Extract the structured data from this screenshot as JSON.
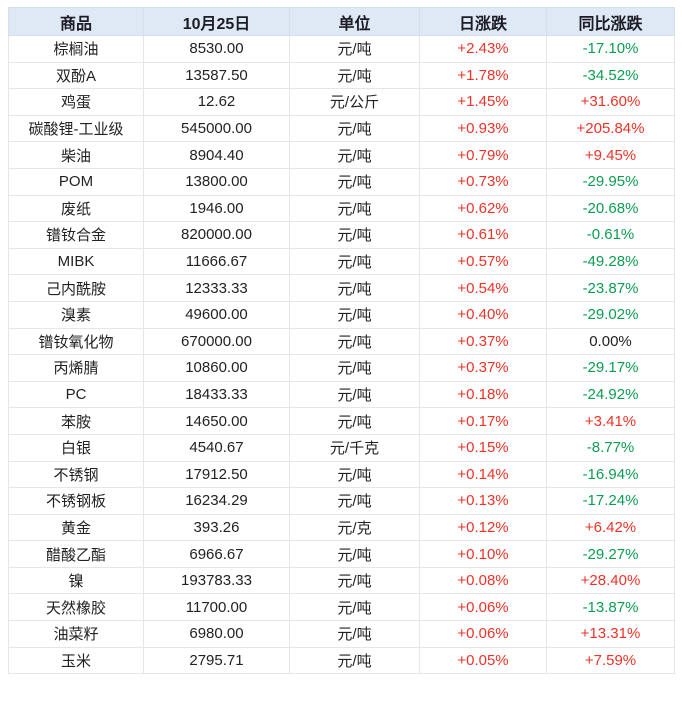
{
  "colors": {
    "up_red": "#ee3227",
    "down_green": "#0d9d52",
    "neutral": "#1f1f1f",
    "header_bg": "#dfe9f6",
    "outer_border": "#bdd0e6",
    "grid_line": "#e6e6e6"
  },
  "chart_data": {
    "type": "table",
    "columns": [
      "商品",
      "10月25日",
      "单位",
      "日涨跌",
      "同比涨跌"
    ],
    "rows": [
      {
        "commodity": "棕榈油",
        "price": "8530.00",
        "unit": "元/吨",
        "daily_change": "+2.43%",
        "yoy_change": "-17.10%"
      },
      {
        "commodity": "双酚A",
        "price": "13587.50",
        "unit": "元/吨",
        "daily_change": "+1.78%",
        "yoy_change": "-34.52%"
      },
      {
        "commodity": "鸡蛋",
        "price": "12.62",
        "unit": "元/公斤",
        "daily_change": "+1.45%",
        "yoy_change": "+31.60%"
      },
      {
        "commodity": "碳酸锂-工业级",
        "price": "545000.00",
        "unit": "元/吨",
        "daily_change": "+0.93%",
        "yoy_change": "+205.84%"
      },
      {
        "commodity": "柴油",
        "price": "8904.40",
        "unit": "元/吨",
        "daily_change": "+0.79%",
        "yoy_change": "+9.45%"
      },
      {
        "commodity": "POM",
        "price": "13800.00",
        "unit": "元/吨",
        "daily_change": "+0.73%",
        "yoy_change": "-29.95%"
      },
      {
        "commodity": "废纸",
        "price": "1946.00",
        "unit": "元/吨",
        "daily_change": "+0.62%",
        "yoy_change": "-20.68%"
      },
      {
        "commodity": "镨钕合金",
        "price": "820000.00",
        "unit": "元/吨",
        "daily_change": "+0.61%",
        "yoy_change": "-0.61%"
      },
      {
        "commodity": "MIBK",
        "price": "11666.67",
        "unit": "元/吨",
        "daily_change": "+0.57%",
        "yoy_change": "-49.28%"
      },
      {
        "commodity": "己内酰胺",
        "price": "12333.33",
        "unit": "元/吨",
        "daily_change": "+0.54%",
        "yoy_change": "-23.87%"
      },
      {
        "commodity": "溴素",
        "price": "49600.00",
        "unit": "元/吨",
        "daily_change": "+0.40%",
        "yoy_change": "-29.02%"
      },
      {
        "commodity": "镨钕氧化物",
        "price": "670000.00",
        "unit": "元/吨",
        "daily_change": "+0.37%",
        "yoy_change": "0.00%"
      },
      {
        "commodity": "丙烯腈",
        "price": "10860.00",
        "unit": "元/吨",
        "daily_change": "+0.37%",
        "yoy_change": "-29.17%"
      },
      {
        "commodity": "PC",
        "price": "18433.33",
        "unit": "元/吨",
        "daily_change": "+0.18%",
        "yoy_change": "-24.92%"
      },
      {
        "commodity": "苯胺",
        "price": "14650.00",
        "unit": "元/吨",
        "daily_change": "+0.17%",
        "yoy_change": "+3.41%"
      },
      {
        "commodity": "白银",
        "price": "4540.67",
        "unit": "元/千克",
        "daily_change": "+0.15%",
        "yoy_change": "-8.77%"
      },
      {
        "commodity": "不锈钢",
        "price": "17912.50",
        "unit": "元/吨",
        "daily_change": "+0.14%",
        "yoy_change": "-16.94%"
      },
      {
        "commodity": "不锈钢板",
        "price": "16234.29",
        "unit": "元/吨",
        "daily_change": "+0.13%",
        "yoy_change": "-17.24%"
      },
      {
        "commodity": "黄金",
        "price": "393.26",
        "unit": "元/克",
        "daily_change": "+0.12%",
        "yoy_change": "+6.42%"
      },
      {
        "commodity": "醋酸乙酯",
        "price": "6966.67",
        "unit": "元/吨",
        "daily_change": "+0.10%",
        "yoy_change": "-29.27%"
      },
      {
        "commodity": "镍",
        "price": "193783.33",
        "unit": "元/吨",
        "daily_change": "+0.08%",
        "yoy_change": "+28.40%"
      },
      {
        "commodity": "天然橡胶",
        "price": "11700.00",
        "unit": "元/吨",
        "daily_change": "+0.06%",
        "yoy_change": "-13.87%"
      },
      {
        "commodity": "油菜籽",
        "price": "6980.00",
        "unit": "元/吨",
        "daily_change": "+0.06%",
        "yoy_change": "+13.31%"
      },
      {
        "commodity": "玉米",
        "price": "2795.71",
        "unit": "元/吨",
        "daily_change": "+0.05%",
        "yoy_change": "+7.59%"
      }
    ]
  }
}
